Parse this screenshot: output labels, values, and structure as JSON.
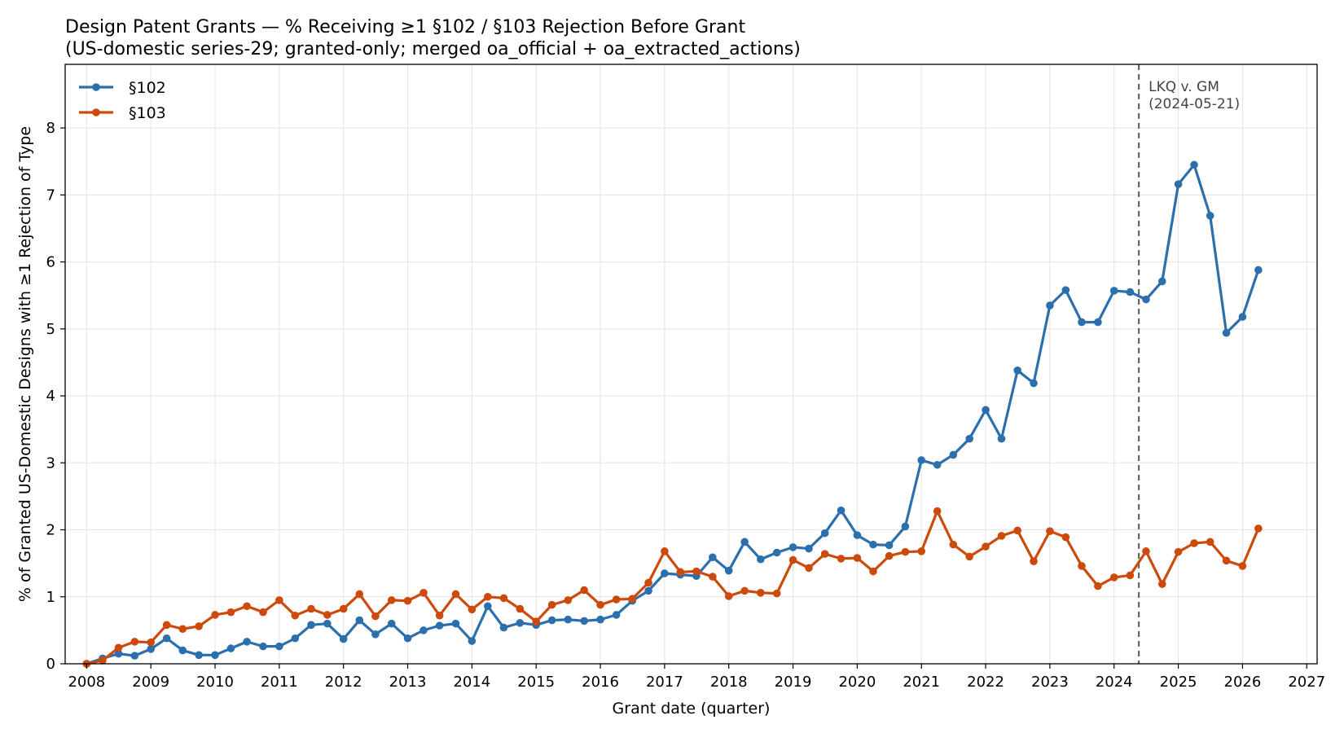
{
  "chart_data": {
    "type": "line",
    "title": "Design Patent Grants — % Receiving ≥1 §102 / §103 Rejection Before Grant",
    "subtitle": "(US-domestic series-29; granted-only; merged oa_official + oa_extracted_actions)",
    "xlabel": "Grant date (quarter)",
    "ylabel": "% of Granted US-Domestic Designs with ≥1 Rejection of Type",
    "xlim": [
      "2007-09-01",
      "2027-03-01"
    ],
    "ylim": [
      0,
      8.95
    ],
    "x_ticks": [
      "2008",
      "2009",
      "2010",
      "2011",
      "2012",
      "2013",
      "2014",
      "2015",
      "2016",
      "2017",
      "2018",
      "2019",
      "2020",
      "2021",
      "2022",
      "2023",
      "2024",
      "2025",
      "2026",
      "2027"
    ],
    "y_ticks": [
      "0",
      "1",
      "2",
      "3",
      "4",
      "5",
      "6",
      "7",
      "8"
    ],
    "grid": true,
    "legend_position": "top-left",
    "x": [
      "2008-01-01",
      "2008-04-01",
      "2008-07-01",
      "2008-10-01",
      "2009-01-01",
      "2009-04-01",
      "2009-07-01",
      "2009-10-01",
      "2010-01-01",
      "2010-04-01",
      "2010-07-01",
      "2010-10-01",
      "2011-01-01",
      "2011-04-01",
      "2011-07-01",
      "2011-10-01",
      "2012-01-01",
      "2012-04-01",
      "2012-07-01",
      "2012-10-01",
      "2013-01-01",
      "2013-04-01",
      "2013-07-01",
      "2013-10-01",
      "2014-01-01",
      "2014-04-01",
      "2014-07-01",
      "2014-10-01",
      "2015-01-01",
      "2015-04-01",
      "2015-07-01",
      "2015-10-01",
      "2016-01-01",
      "2016-04-01",
      "2016-07-01",
      "2016-10-01",
      "2017-01-01",
      "2017-04-01",
      "2017-07-01",
      "2017-10-01",
      "2018-01-01",
      "2018-04-01",
      "2018-07-01",
      "2018-10-01",
      "2019-01-01",
      "2019-04-01",
      "2019-07-01",
      "2019-10-01",
      "2020-01-01",
      "2020-04-01",
      "2020-07-01",
      "2020-10-01",
      "2021-01-01",
      "2021-04-01",
      "2021-07-01",
      "2021-10-01",
      "2022-01-01",
      "2022-04-01",
      "2022-07-01",
      "2022-10-01",
      "2023-01-01",
      "2023-04-01",
      "2023-07-01",
      "2023-10-01",
      "2024-01-01",
      "2024-04-01",
      "2024-07-01",
      "2024-10-01",
      "2025-01-01",
      "2025-04-01",
      "2025-07-01",
      "2025-10-01",
      "2026-01-01",
      "2026-04-01"
    ],
    "series": [
      {
        "name": "§102",
        "color": "#2c6fad",
        "values": [
          0.0,
          0.08,
          0.15,
          0.12,
          0.22,
          0.38,
          0.2,
          0.13,
          0.13,
          0.23,
          0.33,
          0.26,
          0.26,
          0.38,
          0.58,
          0.6,
          0.37,
          0.65,
          0.44,
          0.6,
          0.38,
          0.5,
          0.57,
          0.6,
          0.34,
          0.86,
          0.54,
          0.61,
          0.58,
          0.65,
          0.66,
          0.64,
          0.66,
          0.73,
          0.94,
          1.09,
          1.35,
          1.33,
          1.31,
          1.59,
          1.39,
          1.82,
          1.56,
          1.66,
          1.74,
          1.72,
          1.95,
          2.29,
          1.92,
          1.78,
          1.77,
          2.05,
          3.04,
          2.97,
          3.12,
          3.36,
          3.79,
          3.36,
          4.38,
          4.19,
          5.35,
          5.58,
          5.1,
          5.1,
          5.57,
          5.55,
          5.44,
          5.71,
          7.16,
          7.45,
          6.69,
          4.94,
          5.18,
          5.88
        ]
      },
      {
        "name": "§103",
        "color": "#cc4a0c",
        "values": [
          0.0,
          0.05,
          0.24,
          0.33,
          0.32,
          0.58,
          0.52,
          0.56,
          0.73,
          0.77,
          0.86,
          0.77,
          0.95,
          0.72,
          0.82,
          0.73,
          0.82,
          1.04,
          0.71,
          0.95,
          0.94,
          1.06,
          0.72,
          1.04,
          0.81,
          1.0,
          0.98,
          0.82,
          0.63,
          0.88,
          0.95,
          1.1,
          0.88,
          0.96,
          0.97,
          1.21,
          1.68,
          1.37,
          1.38,
          1.3,
          1.01,
          1.09,
          1.06,
          1.05,
          1.55,
          1.43,
          1.64,
          1.57,
          1.58,
          1.38,
          1.61,
          1.67,
          1.68,
          2.28,
          1.78,
          1.6,
          1.75,
          1.91,
          1.99,
          1.53,
          1.98,
          1.89,
          1.46,
          1.16,
          1.29,
          1.32,
          1.68,
          1.19,
          1.67,
          1.8,
          1.82,
          1.54,
          1.46,
          2.02
        ]
      }
    ],
    "annotations": [
      {
        "type": "vline",
        "x": "2024-05-21",
        "style": "dashed",
        "color": "#666666",
        "label_line1": "LKQ v. GM",
        "label_line2": "(2024-05-21)"
      }
    ]
  }
}
